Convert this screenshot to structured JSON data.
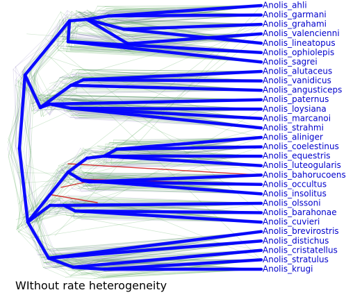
{
  "caption": "WIthout rate heterogeneity",
  "colors": {
    "consensus": "#0000ff",
    "label": "#0000cc",
    "cloud_green": "#3c9a3c",
    "cloud_purple": "#7a6ab8",
    "conflict_red": "#cc1111"
  },
  "taxa": [
    "Anolis_ahli",
    "Anolis_garmani",
    "Anolis_grahami",
    "Anolis_valencienni",
    "Anolis_lineatopus",
    "Anolis_ophiolepis",
    "Anolis_sagrei",
    "Anolis_alutaceus",
    "Anolis_vanidicus",
    "Anolis_angusticeps",
    "Anolis_paternus",
    "Anolis_loysiana",
    "Anolis_marcanoi",
    "Anolis_strahmi",
    "Anolis_aliniger",
    "Anolis_coelestinus",
    "Anolis_equestris",
    "Anolis_luteogularis",
    "Anolis_bahorucoensis",
    "Anolis_occultus",
    "Anolis_insolitus",
    "Anolis_olssoni",
    "Anolis_barahonae",
    "Anolis_cuvieri",
    "Anolis_brevirostris",
    "Anolis_distichus",
    "Anolis_cristatellus",
    "Anolis_stratulus",
    "Anolis_krugi"
  ]
}
